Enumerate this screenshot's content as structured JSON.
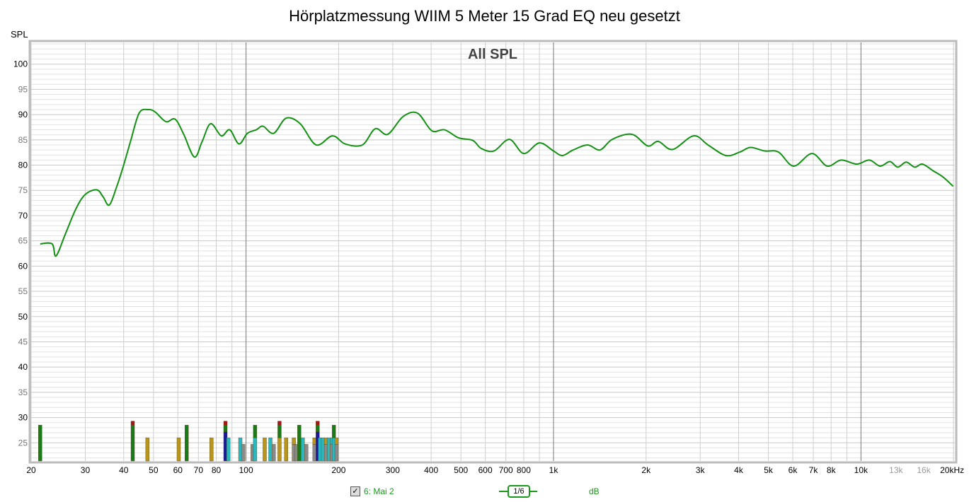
{
  "chart_data": {
    "type": "line",
    "title": "Hörplatzmessung WIIM 5 Meter 15 Grad EQ neu gesetzt",
    "subtitle": "All SPL",
    "ylabel": "SPL",
    "xlabel": "Hz",
    "xscale": "log",
    "xlim": [
      20,
      20200
    ],
    "ylim": [
      21.4,
      104.3
    ],
    "grid": true,
    "y_ticks": [
      "25",
      "30",
      "35",
      "40",
      "45",
      "50",
      "55",
      "60",
      "65",
      "70",
      "75",
      "80",
      "85",
      "90",
      "95",
      "100"
    ],
    "x_ticks": [
      {
        "f": 20,
        "label": "20"
      },
      {
        "f": 30,
        "label": "30"
      },
      {
        "f": 40,
        "label": "40"
      },
      {
        "f": 50,
        "label": "50"
      },
      {
        "f": 60,
        "label": "60"
      },
      {
        "f": 70,
        "label": "70"
      },
      {
        "f": 80,
        "label": "80"
      },
      {
        "f": 100,
        "label": "100"
      },
      {
        "f": 200,
        "label": "200"
      },
      {
        "f": 300,
        "label": "300"
      },
      {
        "f": 400,
        "label": "400"
      },
      {
        "f": 500,
        "label": "500"
      },
      {
        "f": 600,
        "label": "600"
      },
      {
        "f": 700,
        "label": "700"
      },
      {
        "f": 800,
        "label": "800"
      },
      {
        "f": 1000,
        "label": "1k"
      },
      {
        "f": 2000,
        "label": "2k"
      },
      {
        "f": 3000,
        "label": "3k"
      },
      {
        "f": 4000,
        "label": "4k"
      },
      {
        "f": 5000,
        "label": "5k"
      },
      {
        "f": 6000,
        "label": "6k"
      },
      {
        "f": 7000,
        "label": "7k"
      },
      {
        "f": 8000,
        "label": "8k"
      },
      {
        "f": 10000,
        "label": "10k"
      },
      {
        "f": 13000,
        "label": "13k",
        "muted": true
      },
      {
        "f": 16000,
        "label": "16k",
        "muted": true
      },
      {
        "f": 20000,
        "label": "20kHz"
      }
    ],
    "series": [
      {
        "name": "6: Mai 2",
        "color": "#139113",
        "points": [
          [
            21.4,
            64.4
          ],
          [
            23.4,
            64.4
          ],
          [
            24.1,
            62.0
          ],
          [
            25.9,
            66.5
          ],
          [
            28.0,
            71.4
          ],
          [
            30.0,
            74.2
          ],
          [
            32.7,
            75.1
          ],
          [
            34.3,
            73.7
          ],
          [
            35.9,
            72.1
          ],
          [
            37.9,
            75.6
          ],
          [
            39.9,
            79.8
          ],
          [
            42.1,
            84.7
          ],
          [
            44.9,
            90.3
          ],
          [
            48.1,
            91.0
          ],
          [
            50.7,
            90.5
          ],
          [
            54.9,
            88.6
          ],
          [
            58.8,
            89.1
          ],
          [
            62.7,
            86.1
          ],
          [
            67.9,
            81.6
          ],
          [
            72.0,
            84.7
          ],
          [
            76.7,
            88.2
          ],
          [
            83.1,
            85.8
          ],
          [
            88.5,
            87.0
          ],
          [
            94.8,
            84.2
          ],
          [
            101,
            86.3
          ],
          [
            108,
            87.0
          ],
          [
            113.6,
            87.7
          ],
          [
            123,
            86.3
          ],
          [
            135,
            89.3
          ],
          [
            150,
            88.2
          ],
          [
            169,
            84.0
          ],
          [
            191,
            85.8
          ],
          [
            210,
            84.2
          ],
          [
            239,
            84.0
          ],
          [
            263,
            87.2
          ],
          [
            289,
            86.1
          ],
          [
            324,
            89.6
          ],
          [
            361,
            90.3
          ],
          [
            402,
            86.8
          ],
          [
            442,
            87.0
          ],
          [
            491,
            85.4
          ],
          [
            546,
            84.9
          ],
          [
            582,
            83.3
          ],
          [
            640,
            82.8
          ],
          [
            719,
            85.1
          ],
          [
            800,
            82.3
          ],
          [
            900,
            84.4
          ],
          [
            1000,
            82.8
          ],
          [
            1069,
            81.9
          ],
          [
            1159,
            83.0
          ],
          [
            1290,
            84.0
          ],
          [
            1417,
            83.0
          ],
          [
            1553,
            85.1
          ],
          [
            1800,
            86.1
          ],
          [
            2024,
            83.8
          ],
          [
            2192,
            84.7
          ],
          [
            2438,
            83.1
          ],
          [
            2856,
            85.8
          ],
          [
            3180,
            84.0
          ],
          [
            3635,
            81.9
          ],
          [
            4040,
            82.6
          ],
          [
            4370,
            83.5
          ],
          [
            4860,
            82.8
          ],
          [
            5390,
            82.6
          ],
          [
            6040,
            79.8
          ],
          [
            6930,
            82.3
          ],
          [
            7760,
            79.8
          ],
          [
            8620,
            81.0
          ],
          [
            9690,
            80.2
          ],
          [
            10650,
            81.0
          ],
          [
            11540,
            79.8
          ],
          [
            12420,
            80.7
          ],
          [
            13170,
            79.6
          ],
          [
            14030,
            80.6
          ],
          [
            14950,
            79.6
          ],
          [
            15850,
            80.2
          ],
          [
            17140,
            78.9
          ],
          [
            18440,
            77.7
          ],
          [
            19950,
            75.8
          ]
        ]
      }
    ],
    "markers": [
      {
        "f": 21.4,
        "stack": [
          [
            "#1a7a1a",
            28.5
          ]
        ]
      },
      {
        "f": 42.8,
        "stack": [
          [
            "#1a7a1a",
            28.5
          ],
          [
            "#a01818",
            29.3
          ]
        ]
      },
      {
        "f": 47.8,
        "stack": [
          [
            "#b8961e",
            26
          ]
        ]
      },
      {
        "f": 60.4,
        "stack": [
          [
            "#b8961e",
            26
          ]
        ]
      },
      {
        "f": 64.1,
        "stack": [
          [
            "#1a7a1a",
            28.5
          ]
        ]
      },
      {
        "f": 77.2,
        "stack": [
          [
            "#b8961e",
            26
          ]
        ]
      },
      {
        "f": 85.7,
        "stack": [
          [
            "#1a1aa0",
            27.2
          ],
          [
            "#1a7a1a",
            28.5
          ],
          [
            "#a01818",
            29.3
          ]
        ]
      },
      {
        "f": 87.6,
        "stack": [
          [
            "#2ab8c0",
            26
          ]
        ]
      },
      {
        "f": 95.8,
        "stack": [
          [
            "#2ab8c0",
            26
          ]
        ]
      },
      {
        "f": 97.9,
        "stack": [
          [
            "#8a8a8a",
            24.7
          ]
        ]
      },
      {
        "f": 105,
        "stack": [
          [
            "#8a8a8a",
            24.7
          ]
        ]
      },
      {
        "f": 107,
        "stack": [
          [
            "#2ab8c0",
            26
          ],
          [
            "#1a7a1a",
            28.5
          ]
        ]
      },
      {
        "f": 115,
        "stack": [
          [
            "#b8961e",
            26
          ]
        ]
      },
      {
        "f": 120,
        "stack": [
          [
            "#2ab8c0",
            26
          ]
        ]
      },
      {
        "f": 123,
        "stack": [
          [
            "#8a8a8a",
            24.7
          ]
        ]
      },
      {
        "f": 128.5,
        "stack": [
          [
            "#b8961e",
            26
          ],
          [
            "#1a7a1a",
            28.5
          ],
          [
            "#a01818",
            29.3
          ]
        ]
      },
      {
        "f": 135,
        "stack": [
          [
            "#b8961e",
            26
          ]
        ]
      },
      {
        "f": 143,
        "stack": [
          [
            "#8a8a8a",
            24.7
          ],
          [
            "#b8961e",
            26
          ]
        ]
      },
      {
        "f": 146,
        "stack": [
          [
            "#8a8a8a",
            24.7
          ]
        ]
      },
      {
        "f": 149,
        "stack": [
          [
            "#1a7a1a",
            28.5
          ]
        ]
      },
      {
        "f": 153,
        "stack": [
          [
            "#2ab8c0",
            26
          ]
        ]
      },
      {
        "f": 157,
        "stack": [
          [
            "#8a8a8a",
            24.7
          ]
        ]
      },
      {
        "f": 167,
        "stack": [
          [
            "#8a8a8a",
            24.7
          ],
          [
            "#b8961e",
            26
          ]
        ]
      },
      {
        "f": 171,
        "stack": [
          [
            "#1a1aa0",
            27.2
          ],
          [
            "#1a7a1a",
            28.5
          ],
          [
            "#a01818",
            29.3
          ]
        ]
      },
      {
        "f": 174,
        "stack": [
          [
            "#2ab8c0",
            26
          ]
        ]
      },
      {
        "f": 178,
        "stack": [
          [
            "#2ab8c0",
            26
          ]
        ]
      },
      {
        "f": 182,
        "stack": [
          [
            "#8a8a8a",
            24.7
          ],
          [
            "#b8961e",
            26
          ]
        ]
      },
      {
        "f": 186,
        "stack": [
          [
            "#2ab8c0",
            26
          ]
        ]
      },
      {
        "f": 190,
        "stack": [
          [
            "#8a8a8a",
            24.7
          ],
          [
            "#2ab8c0",
            26
          ]
        ]
      },
      {
        "f": 193,
        "stack": [
          [
            "#2ab8c0",
            26
          ],
          [
            "#1a7a1a",
            28.5
          ]
        ]
      },
      {
        "f": 197,
        "stack": [
          [
            "#8a8a8a",
            24.7
          ],
          [
            "#b8961e",
            26
          ]
        ]
      }
    ]
  },
  "legend": {
    "checked": true,
    "measurement": "6: Mai 2",
    "smoothing": "1/6",
    "unit": "dB"
  }
}
